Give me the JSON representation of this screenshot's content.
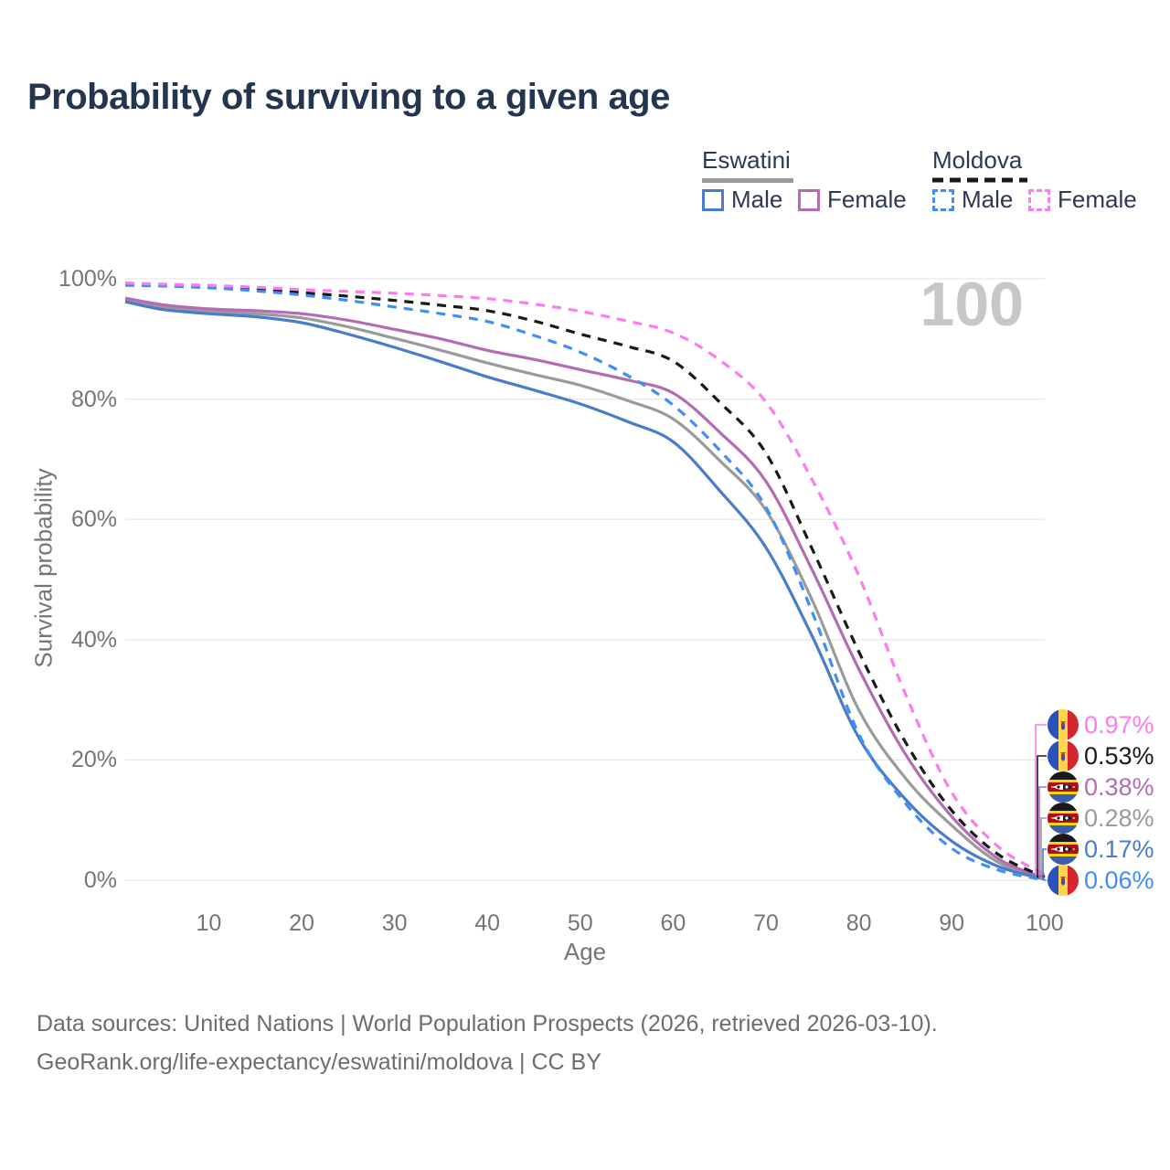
{
  "title": "Probability of surviving to a given age",
  "watermark": "100",
  "legend": {
    "groups": [
      {
        "name": "Eswatini",
        "underline_style": "solid",
        "underline_color": "#9a9a9a",
        "items": [
          {
            "label": "Male",
            "color": "#4a7cc9",
            "dashed": false
          },
          {
            "label": "Female",
            "color": "#b36cb4",
            "dashed": false
          }
        ]
      },
      {
        "name": "Moldova",
        "underline_style": "dashed",
        "underline_color": "#1a1a1a",
        "items": [
          {
            "label": "Male",
            "color": "#3f8ef7",
            "dashed": true
          },
          {
            "label": "Female",
            "color": "#fb7cec",
            "dashed": true
          }
        ]
      }
    ]
  },
  "axes": {
    "y_label": "Survival probability",
    "x_label": "Age",
    "y_ticks": [
      "100%",
      "80%",
      "60%",
      "40%",
      "20%",
      "0%"
    ],
    "x_ticks": [
      "10",
      "20",
      "30",
      "40",
      "50",
      "60",
      "70",
      "80",
      "90",
      "100"
    ]
  },
  "end_labels": [
    {
      "text": "0.97%",
      "flag": "moldova",
      "color": "#fb7cec"
    },
    {
      "text": "0.53%",
      "flag": "moldova",
      "color": "#1a1a1a"
    },
    {
      "text": "0.38%",
      "flag": "eswatini",
      "color": "#b36cb4"
    },
    {
      "text": "0.28%",
      "flag": "eswatini",
      "color": "#9a9a9a"
    },
    {
      "text": "0.17%",
      "flag": "eswatini",
      "color": "#4a7cc9"
    },
    {
      "text": "0.06%",
      "flag": "moldova",
      "color": "#3f8ef7"
    }
  ],
  "source": {
    "line1": "Data sources: United Nations | World Population Prospects (2026, retrieved 2026-03-10).",
    "line2": "GeoRank.org/life-expectancy/eswatini/moldova | CC BY"
  },
  "chart_data": {
    "type": "line",
    "title": "Probability of surviving to a given age",
    "xlabel": "Age",
    "ylabel": "Survival probability",
    "xlim": [
      0,
      100
    ],
    "ylim_percent": [
      0,
      100
    ],
    "grid": "horizontal",
    "x_ages": [
      1,
      5,
      10,
      15,
      20,
      25,
      30,
      35,
      40,
      45,
      50,
      55,
      60,
      65,
      70,
      75,
      80,
      85,
      90,
      95,
      100
    ],
    "series": [
      {
        "name": "Eswatini Both",
        "country": "eswatini",
        "sex": "both",
        "color": "#9a9a9a",
        "dashed": false,
        "end_value_percent": 0.28,
        "values": [
          96.5,
          95.3,
          94.6,
          94.2,
          93.5,
          92.0,
          90.1,
          88.1,
          86.0,
          84.1,
          82.3,
          79.8,
          76.7,
          69.8,
          61.5,
          46.5,
          28.3,
          17.0,
          9.1,
          3.0,
          0.28
        ]
      },
      {
        "name": "Eswatini Female",
        "country": "eswatini",
        "sex": "female",
        "color": "#b36cb4",
        "dashed": false,
        "end_value_percent": 0.38,
        "values": [
          96.8,
          95.7,
          95.0,
          94.7,
          94.2,
          93.1,
          91.6,
          90.0,
          88.1,
          86.6,
          84.9,
          83.2,
          81.0,
          74.5,
          66.3,
          51.5,
          35.1,
          21.0,
          10.6,
          3.6,
          0.38
        ]
      },
      {
        "name": "Eswatini Male",
        "country": "eswatini",
        "sex": "male",
        "color": "#4a7cc9",
        "dashed": false,
        "end_value_percent": 0.17,
        "values": [
          96.2,
          94.9,
          94.2,
          93.7,
          92.7,
          90.8,
          88.6,
          86.2,
          83.7,
          81.5,
          79.2,
          76.3,
          72.9,
          64.8,
          55.3,
          40.5,
          23.7,
          13.5,
          6.5,
          2.3,
          0.17
        ]
      },
      {
        "name": "Moldova Both",
        "country": "moldova",
        "sex": "both",
        "color": "#1a1a1a",
        "dashed": true,
        "end_value_percent": 0.53,
        "values": [
          99.1,
          99.0,
          98.7,
          98.3,
          97.7,
          97.1,
          96.4,
          95.6,
          94.7,
          93.0,
          90.8,
          88.8,
          86.3,
          79.5,
          71.0,
          55.0,
          38.0,
          23.0,
          11.6,
          4.3,
          0.53
        ]
      },
      {
        "name": "Moldova Male",
        "country": "moldova",
        "sex": "male",
        "color": "#3f8ef7",
        "dashed": true,
        "end_value_percent": 0.06,
        "values": [
          98.9,
          98.8,
          98.5,
          98.0,
          97.3,
          96.4,
          95.3,
          94.2,
          92.9,
          90.6,
          87.8,
          84.0,
          79.0,
          71.5,
          62.0,
          44.5,
          24.3,
          12.8,
          5.3,
          1.7,
          0.06
        ]
      },
      {
        "name": "Moldova Female",
        "country": "moldova",
        "sex": "female",
        "color": "#fb7cec",
        "dashed": true,
        "end_value_percent": 0.97,
        "values": [
          99.3,
          99.1,
          98.9,
          98.6,
          98.2,
          97.9,
          97.6,
          97.2,
          96.7,
          95.8,
          94.6,
          93.0,
          91.0,
          86.5,
          79.5,
          66.5,
          50.6,
          31.0,
          14.6,
          5.6,
          0.97
        ]
      }
    ],
    "legend_position": "top-right",
    "hover_age_indicator": "100"
  },
  "flag_colors": {
    "moldova": {
      "blue": "#2a52be",
      "yellow": "#fcd44e",
      "red": "#d5252e",
      "emblem": "#8a5a2a"
    },
    "eswatini": {
      "black": "#1a1a1a",
      "yellow": "#f7d618",
      "crimson": "#b10c1a",
      "blue": "#3a5dae",
      "white": "#ffffff"
    }
  }
}
